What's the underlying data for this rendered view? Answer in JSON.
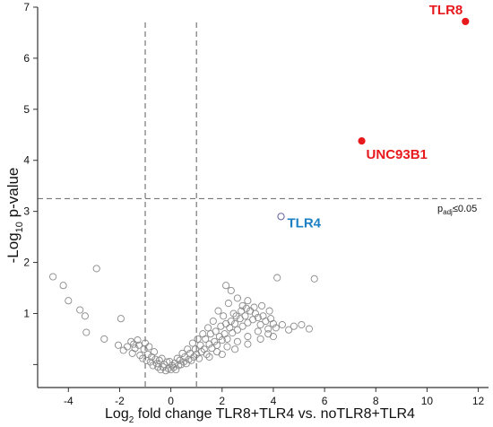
{
  "chart_data": {
    "type": "scatter",
    "title": "",
    "xlabel": {
      "prefix": "Log",
      "sub": "2",
      "suffix": " fold change TLR8+TLR4 vs. noTLR8+TLR4"
    },
    "ylabel": {
      "prefix": "-Log",
      "sub": "10",
      "suffix": " p-value"
    },
    "xlim": [
      -5.2,
      12.4
    ],
    "ylim": [
      -0.45,
      7.0
    ],
    "x_ticks": [
      -4,
      -2,
      0,
      2,
      4,
      6,
      8,
      10,
      12
    ],
    "y_ticks": [
      1,
      2,
      3,
      4,
      5,
      6,
      7
    ],
    "grid": false,
    "thresholds": {
      "fold_change_lines": [
        -1,
        1
      ],
      "pvalue_line": 3.25,
      "pvalue_label": {
        "prefix": "p",
        "sub": "adj",
        "suffix": "≤0.05"
      }
    },
    "highlighted_genes": [
      {
        "name": "TLR8",
        "x": 11.5,
        "y": 6.72,
        "color": "#e8191c",
        "marker": "filled"
      },
      {
        "name": "UNC93B1",
        "x": 7.45,
        "y": 4.38,
        "color": "#e8191c",
        "marker": "filled"
      },
      {
        "name": "TLR4",
        "x": 4.3,
        "y": 2.9,
        "color": "#1b7fc3",
        "marker": "open",
        "marker_color": "#6a6aa8"
      }
    ],
    "background_series_color": "#8a8a8a",
    "background_points": [
      [
        -4.6,
        1.72
      ],
      [
        -4.2,
        1.55
      ],
      [
        -4.0,
        1.25
      ],
      [
        -3.55,
        1.07
      ],
      [
        -3.35,
        0.95
      ],
      [
        -3.3,
        0.63
      ],
      [
        -2.9,
        1.88
      ],
      [
        -2.6,
        0.5
      ],
      [
        -2.05,
        0.38
      ],
      [
        -1.95,
        0.9
      ],
      [
        -1.55,
        0.45
      ],
      [
        -1.5,
        0.22
      ],
      [
        -1.4,
        0.32
      ],
      [
        -1.3,
        0.48
      ],
      [
        -1.2,
        0.18
      ],
      [
        -1.1,
        0.12
      ],
      [
        -1.05,
        0.3
      ],
      [
        -0.95,
        0.08
      ],
      [
        -0.9,
        0.2
      ],
      [
        -0.8,
        0.05
      ],
      [
        -0.75,
        0.15
      ],
      [
        -0.7,
        -0.02
      ],
      [
        -0.6,
        0.1
      ],
      [
        -0.55,
        0.02
      ],
      [
        -0.5,
        -0.05
      ],
      [
        -0.45,
        0.08
      ],
      [
        -0.4,
        -0.1
      ],
      [
        -0.3,
        -0.05
      ],
      [
        -0.25,
        0.0
      ],
      [
        -0.2,
        -0.12
      ],
      [
        -0.1,
        -0.08
      ],
      [
        0.0,
        -0.1
      ],
      [
        0.1,
        -0.06
      ],
      [
        0.2,
        -0.1
      ],
      [
        0.3,
        -0.02
      ],
      [
        0.4,
        0.0
      ],
      [
        0.5,
        0.05
      ],
      [
        0.6,
        0.02
      ],
      [
        0.7,
        0.1
      ],
      [
        0.8,
        0.08
      ],
      [
        0.9,
        0.15
      ],
      [
        1.0,
        0.2
      ],
      [
        1.1,
        0.12
      ],
      [
        1.2,
        0.25
      ],
      [
        1.3,
        0.3
      ],
      [
        1.4,
        0.2
      ],
      [
        1.5,
        0.4
      ],
      [
        1.6,
        0.32
      ],
      [
        1.7,
        0.45
      ],
      [
        1.8,
        0.38
      ],
      [
        1.9,
        0.55
      ],
      [
        2.0,
        0.48
      ],
      [
        2.1,
        0.6
      ],
      [
        2.2,
        0.5
      ],
      [
        2.3,
        0.72
      ],
      [
        2.4,
        0.62
      ],
      [
        2.5,
        0.8
      ],
      [
        2.6,
        0.68
      ],
      [
        2.7,
        0.9
      ],
      [
        2.8,
        0.75
      ],
      [
        2.9,
        0.95
      ],
      [
        3.0,
        0.82
      ],
      [
        3.1,
        1.05
      ],
      [
        3.2,
        0.88
      ],
      [
        3.3,
        1.0
      ],
      [
        3.4,
        0.92
      ],
      [
        3.5,
        0.78
      ],
      [
        3.6,
        0.95
      ],
      [
        3.7,
        0.85
      ],
      [
        3.8,
        0.7
      ],
      [
        3.9,
        0.9
      ],
      [
        4.0,
        0.8
      ],
      [
        2.15,
        1.55
      ],
      [
        2.35,
        1.45
      ],
      [
        2.6,
        1.3
      ],
      [
        2.25,
        1.2
      ],
      [
        2.8,
        1.15
      ],
      [
        1.85,
        1.05
      ],
      [
        2.05,
        0.95
      ],
      [
        2.45,
        1.0
      ],
      [
        1.65,
        0.85
      ],
      [
        1.45,
        0.72
      ],
      [
        1.25,
        0.6
      ],
      [
        1.05,
        0.5
      ],
      [
        0.85,
        0.42
      ],
      [
        0.65,
        0.3
      ],
      [
        0.45,
        0.22
      ],
      [
        0.25,
        0.12
      ],
      [
        3.0,
        1.25
      ],
      [
        3.25,
        1.12
      ],
      [
        3.55,
        1.15
      ],
      [
        3.85,
        1.05
      ],
      [
        4.1,
        0.72
      ],
      [
        4.35,
        0.78
      ],
      [
        4.6,
        0.68
      ],
      [
        4.8,
        0.75
      ],
      [
        5.1,
        0.78
      ],
      [
        5.4,
        0.7
      ],
      [
        4.15,
        1.7
      ],
      [
        5.6,
        1.68
      ],
      [
        1.55,
        0.6
      ],
      [
        1.75,
        0.65
      ],
      [
        1.95,
        0.75
      ],
      [
        2.15,
        0.8
      ],
      [
        2.35,
        0.85
      ],
      [
        2.55,
        0.95
      ],
      [
        2.75,
        1.05
      ],
      [
        2.95,
        1.1
      ],
      [
        1.35,
        0.5
      ],
      [
        1.15,
        0.38
      ],
      [
        0.95,
        0.3
      ],
      [
        0.75,
        0.22
      ],
      [
        0.55,
        0.15
      ],
      [
        0.35,
        0.08
      ],
      [
        1.8,
        0.25
      ],
      [
        2.2,
        0.35
      ],
      [
        2.6,
        0.45
      ],
      [
        3.0,
        0.55
      ],
      [
        3.4,
        0.65
      ],
      [
        3.8,
        0.6
      ],
      [
        1.5,
        0.15
      ],
      [
        2.0,
        0.2
      ],
      [
        2.5,
        0.3
      ],
      [
        3.0,
        0.4
      ],
      [
        3.5,
        0.5
      ],
      [
        4.0,
        0.55
      ],
      [
        -0.65,
        0.25
      ],
      [
        -0.85,
        0.35
      ],
      [
        -1.0,
        0.42
      ],
      [
        -1.25,
        0.38
      ],
      [
        -1.45,
        0.4
      ],
      [
        -1.7,
        0.35
      ],
      [
        -1.85,
        0.28
      ],
      [
        -0.35,
        0.12
      ],
      [
        -0.15,
        0.05
      ],
      [
        0.15,
        0.03
      ],
      [
        0.05,
        -0.02
      ],
      [
        -0.05,
        0.06
      ]
    ]
  }
}
